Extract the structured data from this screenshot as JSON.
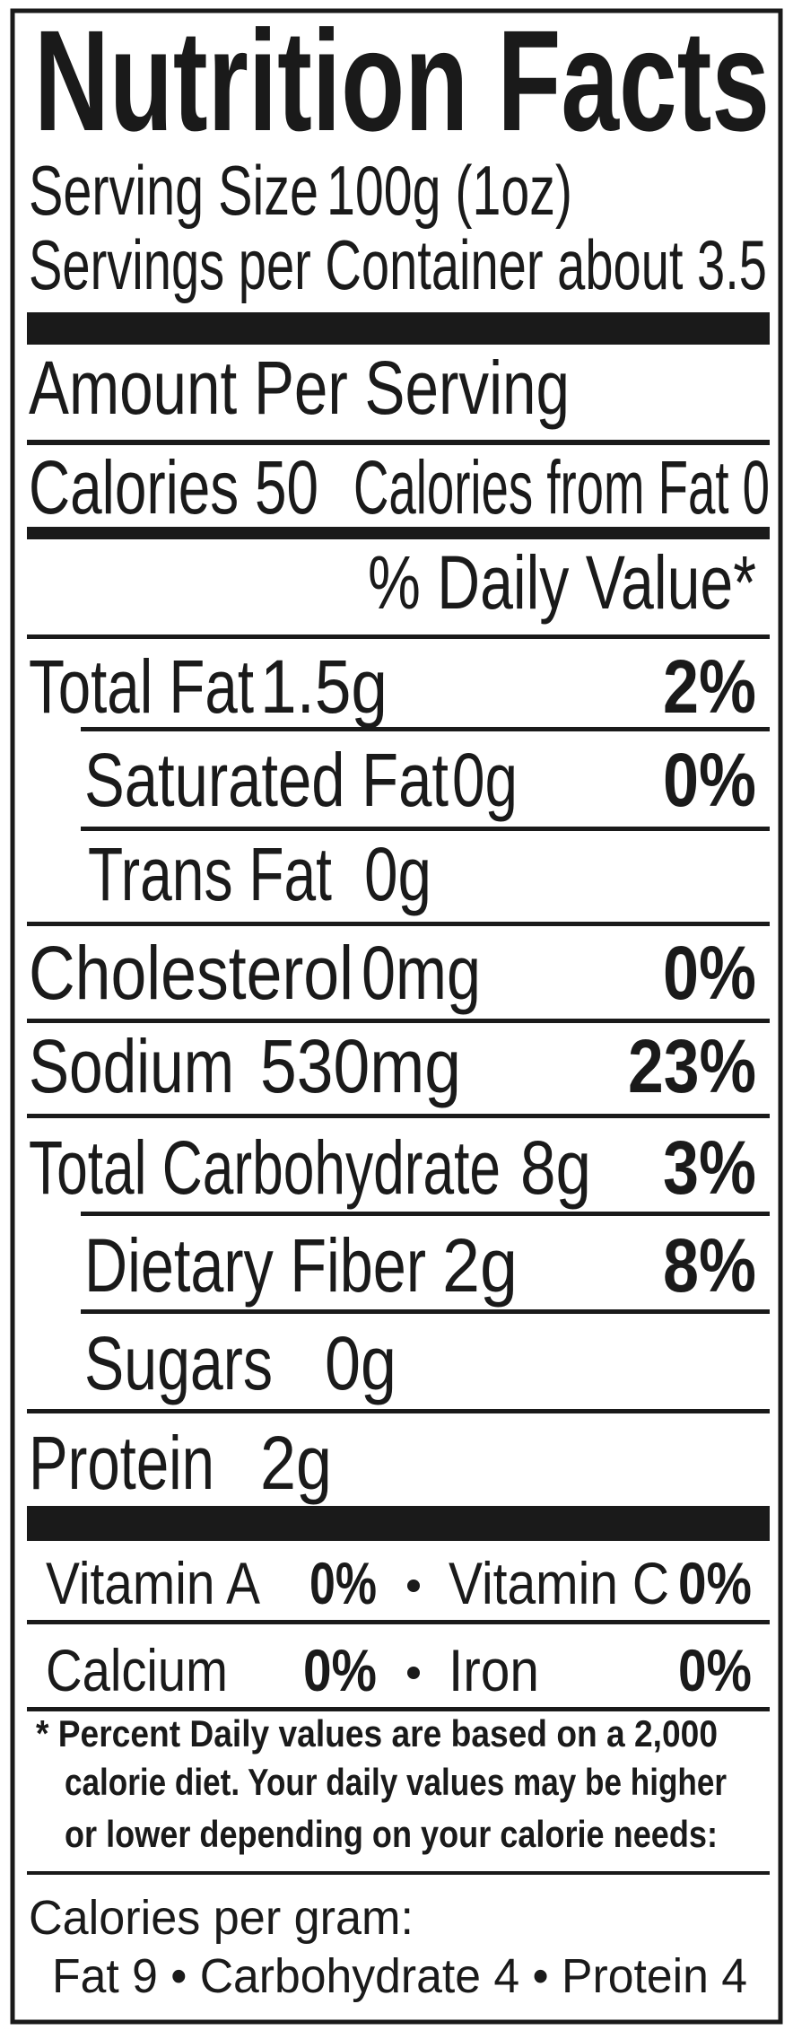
{
  "title": "Nutrition Facts",
  "serving_size": {
    "label": "Serving Size",
    "value": "100g (1oz)"
  },
  "servings_per_container": "Servings per Container about 3.5",
  "amount_per_serving": "Amount Per Serving",
  "calories": "Calories 50",
  "calories_from_fat": "Calories from Fat 0",
  "daily_value_header": "% Daily Value*",
  "nutrients": [
    {
      "name": "Total Fat",
      "amount": "1.5g",
      "dv": "2%"
    },
    {
      "name": "Saturated Fat",
      "amount": "0g",
      "dv": "0%"
    },
    {
      "name": "Trans Fat",
      "amount": "0g"
    },
    {
      "name": "Cholesterol",
      "amount": "0mg",
      "dv": "0%"
    },
    {
      "name": "Sodium",
      "amount": "530mg",
      "dv": "23%"
    },
    {
      "name": "Total Carbohydrate",
      "amount": "8g",
      "dv": "3%"
    },
    {
      "name": "Dietary Fiber",
      "amount": "2g",
      "dv": "8%"
    },
    {
      "name": "Sugars",
      "amount": "0g"
    },
    {
      "name": "Protein",
      "amount": "2g"
    }
  ],
  "vitamins": [
    {
      "name": "Vitamin A",
      "dv": "0%"
    },
    {
      "name": "Vitamin C",
      "dv": "0%"
    },
    {
      "name": "Calcium",
      "dv": "0%"
    },
    {
      "name": "Iron",
      "dv": "0%"
    }
  ],
  "footnote": [
    "* Percent Daily values are based on a 2,000",
    "calorie diet.  Your daily values may be higher",
    "or lower depending on your calorie needs:"
  ],
  "calories_per_gram": {
    "label": "Calories per gram:",
    "values": "Fat 9 • Carbohydrate 4 • Protein 4"
  }
}
